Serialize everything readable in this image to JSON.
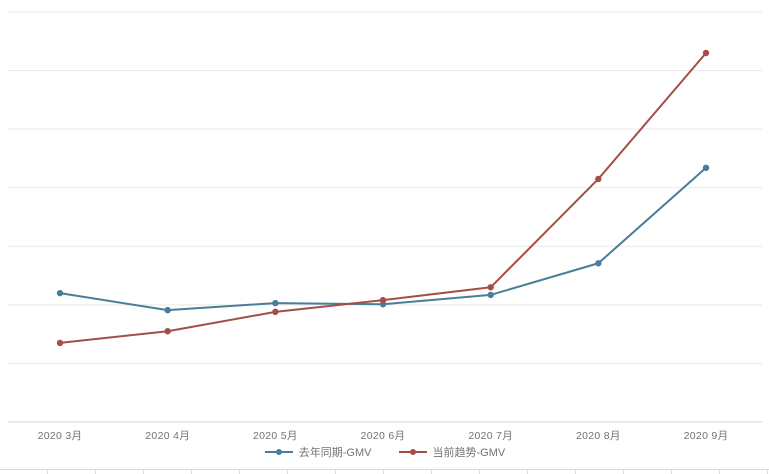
{
  "chart_data": {
    "type": "line",
    "title": "",
    "xlabel": "",
    "ylabel": "",
    "categories": [
      "2020 3月",
      "2020 4月",
      "2020 5月",
      "2020 6月",
      "2020 7月",
      "2020 8月",
      "2020 9月"
    ],
    "series": [
      {
        "name": "去年同期-GMV",
        "color": "#4a7d98",
        "values": [
          2.2,
          1.91,
          2.03,
          2.01,
          2.17,
          2.71,
          4.34
        ]
      },
      {
        "name": "当前趋势-GMV",
        "color": "#a54d48",
        "values": [
          1.35,
          1.55,
          1.88,
          2.08,
          2.3,
          4.15,
          6.3
        ]
      }
    ],
    "ylim": [
      0,
      7
    ],
    "y_gridline_interval": 1,
    "y_axis_labels_visible": false,
    "grid": true,
    "legend_position": "bottom",
    "colors": {
      "gridline": "#e9e9e9",
      "axis_line": "#d4d4d4",
      "label_text": "#737373",
      "table_edge": "#d9d9d9"
    }
  }
}
